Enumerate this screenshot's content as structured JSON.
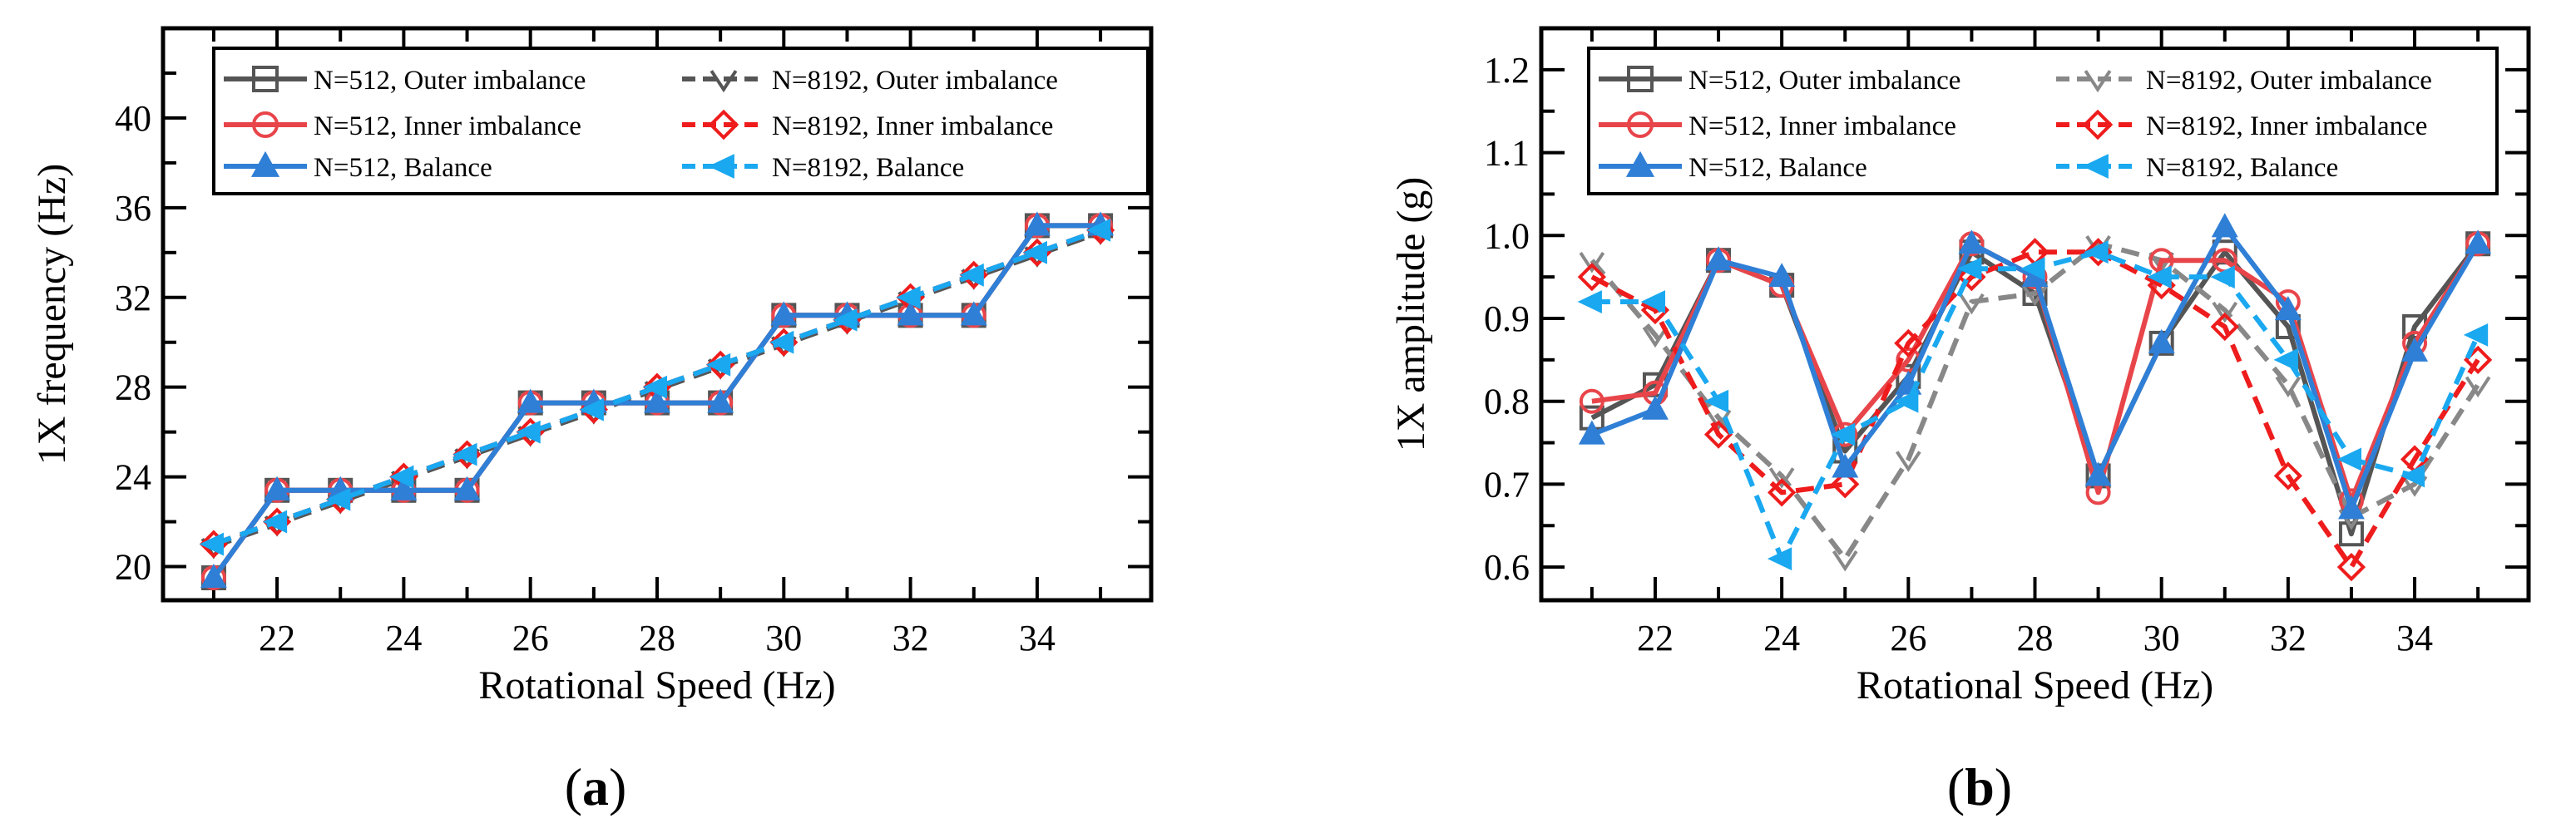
{
  "chart_data": [
    {
      "type": "line",
      "panel": "a",
      "xlabel": "Rotational Speed (Hz)",
      "ylabel": "1X frequency (Hz)",
      "xlim": [
        20.2,
        35.8
      ],
      "ylim": [
        18.5,
        44.0
      ],
      "xticks": [
        22,
        24,
        26,
        28,
        30,
        32,
        34
      ],
      "yticks": [
        20,
        24,
        28,
        32,
        36,
        40
      ],
      "x": [
        21,
        22,
        23,
        24,
        25,
        26,
        27,
        28,
        29,
        30,
        31,
        32,
        33,
        34,
        35
      ],
      "series": [
        {
          "name": "N=512, Outer imbalance",
          "color": "#555555",
          "dash": "solid",
          "marker": "square",
          "values": [
            19.5,
            23.4,
            23.4,
            23.4,
            23.4,
            27.3,
            27.3,
            27.3,
            27.3,
            31.2,
            31.2,
            31.2,
            31.2,
            35.2,
            35.2
          ]
        },
        {
          "name": "N=8192, Outer imbalance",
          "color": "#555555",
          "dash": "dash",
          "marker": "chevron",
          "values": [
            20.9,
            21.9,
            22.9,
            23.9,
            24.9,
            25.9,
            26.9,
            27.9,
            28.9,
            29.9,
            30.9,
            31.9,
            32.9,
            33.9,
            34.9
          ]
        },
        {
          "name": "N=512, Inner imbalance",
          "color": "#e8454a",
          "dash": "solid",
          "marker": "circle",
          "values": [
            19.5,
            23.4,
            23.4,
            23.4,
            23.4,
            27.3,
            27.3,
            27.3,
            27.3,
            31.2,
            31.2,
            31.2,
            31.2,
            35.2,
            35.2
          ]
        },
        {
          "name": "N=8192, Inner imbalance",
          "color": "#ee1c1c",
          "dash": "dash",
          "marker": "diamond",
          "values": [
            21.0,
            22.0,
            23.0,
            24.0,
            25.0,
            26.0,
            27.0,
            28.0,
            29.0,
            30.0,
            31.0,
            32.0,
            33.0,
            34.0,
            35.0
          ]
        },
        {
          "name": "N=512, Balance",
          "color": "#2f7fd6",
          "dash": "solid",
          "marker": "triangle-up",
          "values": [
            19.5,
            23.4,
            23.4,
            23.4,
            23.4,
            27.3,
            27.3,
            27.3,
            27.3,
            31.2,
            31.2,
            31.2,
            31.2,
            35.2,
            35.2
          ]
        },
        {
          "name": "N=8192, Balance",
          "color": "#1aa8f0",
          "dash": "dash",
          "marker": "triangle-left",
          "values": [
            21.0,
            22.0,
            23.0,
            24.0,
            25.0,
            26.0,
            27.0,
            28.0,
            29.0,
            30.0,
            31.0,
            32.0,
            33.0,
            34.0,
            35.0
          ]
        }
      ],
      "legend": "top-left",
      "label": "a"
    },
    {
      "type": "line",
      "panel": "b",
      "xlabel": "Rotational Speed (Hz)",
      "ylabel": "1X amplitude (g)",
      "xlim": [
        20.2,
        35.8
      ],
      "ylim": [
        0.56,
        1.25
      ],
      "xticks": [
        22,
        24,
        26,
        28,
        30,
        32,
        34
      ],
      "yticks": [
        0.6,
        0.7,
        0.8,
        0.9,
        1.0,
        1.1,
        1.2
      ],
      "ytick_labels": [
        "0.6",
        "0.7",
        "0.8",
        "0.9",
        "1.0",
        "1.1",
        "1.2"
      ],
      "x": [
        21,
        22,
        23,
        24,
        25,
        26,
        27,
        28,
        29,
        30,
        31,
        32,
        33,
        34,
        35
      ],
      "series": [
        {
          "name": "N=512, Outer imbalance",
          "color": "#555555",
          "dash": "solid",
          "marker": "square",
          "values": [
            0.78,
            0.82,
            0.97,
            0.94,
            0.74,
            0.83,
            0.98,
            0.93,
            0.71,
            0.87,
            0.98,
            0.89,
            0.64,
            0.89,
            0.99
          ]
        },
        {
          "name": "N=8192, Outer imbalance",
          "color": "#888888",
          "dash": "dash",
          "marker": "chevron",
          "values": [
            0.97,
            0.88,
            0.78,
            0.71,
            0.61,
            0.73,
            0.92,
            0.93,
            0.99,
            0.97,
            0.91,
            0.82,
            0.66,
            0.7,
            0.82
          ]
        },
        {
          "name": "N=512, Inner imbalance",
          "color": "#e8454a",
          "dash": "solid",
          "marker": "circle",
          "values": [
            0.8,
            0.81,
            0.97,
            0.94,
            0.76,
            0.85,
            0.99,
            0.95,
            0.69,
            0.97,
            0.97,
            0.92,
            0.68,
            0.87,
            0.99
          ]
        },
        {
          "name": "N=8192, Inner imbalance",
          "color": "#ee1c1c",
          "dash": "dash",
          "marker": "diamond",
          "values": [
            0.95,
            0.91,
            0.76,
            0.69,
            0.7,
            0.87,
            0.95,
            0.98,
            0.98,
            0.94,
            0.89,
            0.71,
            0.6,
            0.73,
            0.85
          ]
        },
        {
          "name": "N=512, Balance",
          "color": "#2f7fd6",
          "dash": "solid",
          "marker": "triangle-up",
          "values": [
            0.76,
            0.79,
            0.97,
            0.95,
            0.72,
            0.82,
            0.99,
            0.95,
            0.71,
            0.87,
            1.01,
            0.91,
            0.67,
            0.86,
            0.99
          ]
        },
        {
          "name": "N=8192, Balance",
          "color": "#1aa8f0",
          "dash": "dash",
          "marker": "triangle-left",
          "values": [
            0.92,
            0.92,
            0.8,
            0.61,
            0.76,
            0.8,
            0.96,
            0.96,
            0.98,
            0.95,
            0.95,
            0.85,
            0.73,
            0.71,
            0.88
          ]
        }
      ],
      "legend": "top-left",
      "label": "b"
    }
  ]
}
